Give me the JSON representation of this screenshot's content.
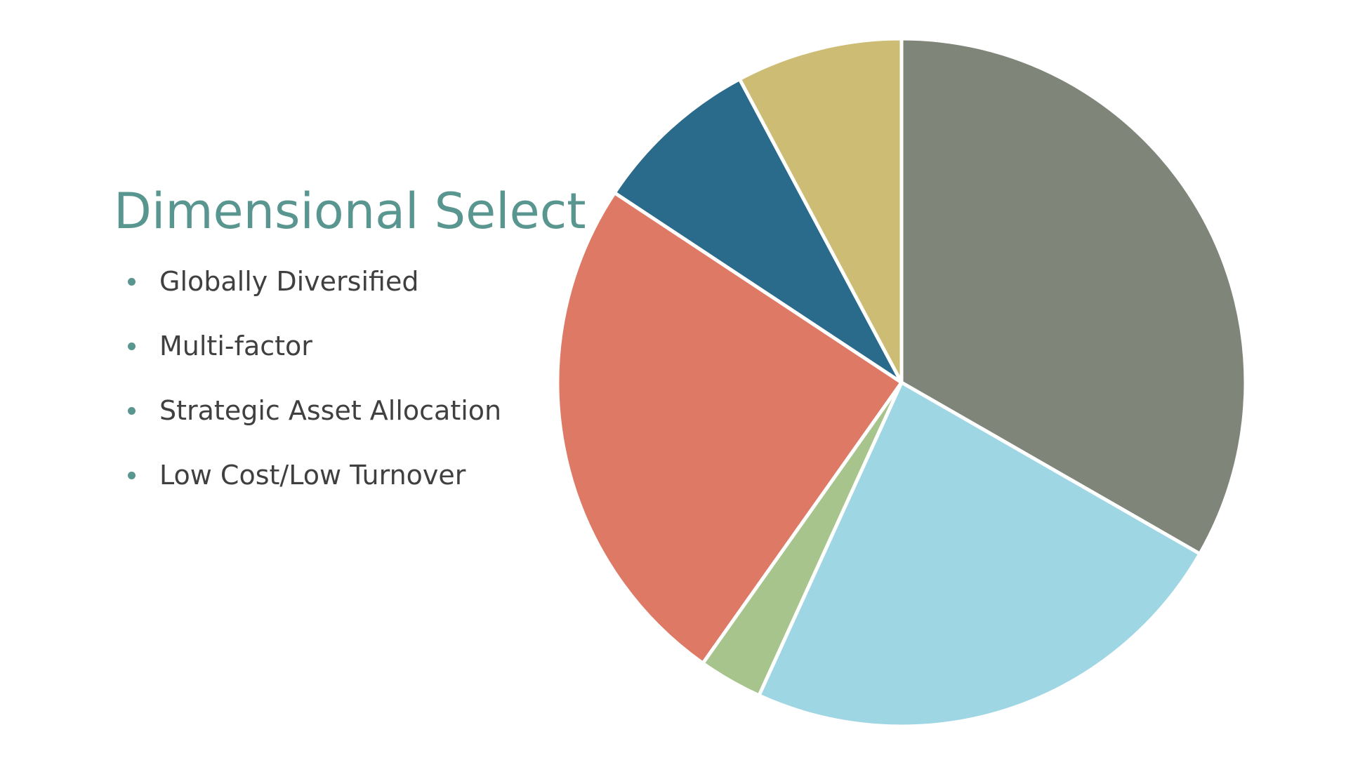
{
  "slide": {
    "title": "Dimensional Select",
    "title_color": "#5a9690",
    "bullet_color": "#5a9690",
    "bullets": [
      "Globally Diversified",
      "Multi-factor",
      "Strategic Asset Allocation",
      "Low Cost/Low Turnover"
    ]
  },
  "chart_data": {
    "type": "pie",
    "start_angle_deg": 0,
    "direction": "clockwise",
    "slices": [
      {
        "value": 33.3,
        "color": "#7f8579"
      },
      {
        "value": 23.5,
        "color": "#9fd6e4"
      },
      {
        "value": 3.0,
        "color": "#a6c48b"
      },
      {
        "value": 24.5,
        "color": "#de7965"
      },
      {
        "value": 7.9,
        "color": "#2a6a8b"
      },
      {
        "value": 7.8,
        "color": "#cdbd74"
      }
    ]
  }
}
